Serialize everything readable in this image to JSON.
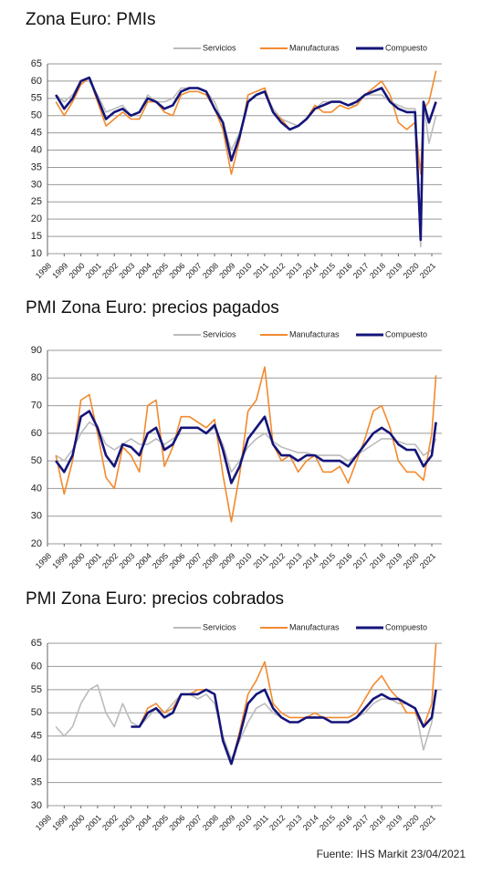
{
  "chart_data": [
    {
      "type": "line",
      "title": "Zona Euro: PMIs",
      "x": [
        1998.5,
        1999,
        1999.5,
        2000,
        2000.5,
        2001,
        2001.5,
        2002,
        2002.5,
        2003,
        2003.5,
        2004,
        2004.5,
        2005,
        2005.5,
        2006,
        2006.5,
        2007,
        2007.5,
        2008,
        2008.5,
        2009,
        2009.5,
        2010,
        2010.5,
        2011,
        2011.5,
        2012,
        2012.5,
        2013,
        2013.5,
        2014,
        2014.5,
        2015,
        2015.5,
        2016,
        2016.5,
        2017,
        2017.5,
        2018,
        2018.5,
        2019,
        2019.5,
        2020,
        2020.33,
        2020.5,
        2020.83,
        2021.25
      ],
      "series": [
        {
          "name": "Servicios",
          "color": "#bbbbbb",
          "values": [
            56,
            54,
            56,
            60,
            60,
            56,
            51,
            52,
            53,
            50,
            51,
            56,
            54,
            54,
            55,
            58,
            58,
            58,
            57,
            54,
            48,
            40,
            45,
            54,
            56,
            57,
            52,
            49,
            48,
            47,
            49,
            52,
            54,
            54,
            54,
            53,
            53,
            56,
            56,
            56,
            54,
            53,
            52,
            52,
            12,
            54,
            42,
            50
          ]
        },
        {
          "name": "Manufacturas",
          "color": "#f28a2e",
          "values": [
            54,
            50,
            54,
            59,
            61,
            54,
            47,
            49,
            51,
            49,
            49,
            54,
            54,
            51,
            50,
            56,
            57,
            57,
            56,
            52,
            46,
            33,
            43,
            56,
            57,
            58,
            51,
            49,
            46,
            47,
            49,
            53,
            51,
            51,
            53,
            52,
            53,
            56,
            58,
            60,
            56,
            48,
            46,
            48,
            33,
            52,
            54,
            63
          ]
        },
        {
          "name": "Compuesto",
          "color": "#14147a",
          "values": [
            56,
            52,
            55,
            60,
            61,
            55,
            49,
            51,
            52,
            50,
            51,
            55,
            54,
            52,
            53,
            57,
            58,
            58,
            57,
            52,
            48,
            37,
            44,
            54,
            56,
            57,
            51,
            48,
            46,
            47,
            49,
            52,
            53,
            54,
            54,
            53,
            54,
            56,
            57,
            58,
            54,
            52,
            51,
            51,
            14,
            54,
            48,
            54
          ]
        }
      ],
      "xlim": [
        1998,
        2021.6
      ],
      "xticks": [
        1998,
        1999,
        2000,
        2001,
        2002,
        2003,
        2004,
        2005,
        2006,
        2007,
        2008,
        2009,
        2010,
        2011,
        2012,
        2013,
        2014,
        2015,
        2016,
        2017,
        2018,
        2019,
        2020,
        2021
      ],
      "ylim": [
        10,
        65
      ],
      "yticks": [
        10,
        15,
        20,
        25,
        30,
        35,
        40,
        45,
        50,
        55,
        60,
        65
      ],
      "grid": true
    },
    {
      "type": "line",
      "title": "PMI Zona Euro: precios pagados",
      "x": [
        1998.5,
        1999,
        1999.5,
        2000,
        2000.5,
        2001,
        2001.5,
        2002,
        2002.5,
        2003,
        2003.5,
        2004,
        2004.5,
        2005,
        2005.5,
        2006,
        2006.5,
        2007,
        2007.5,
        2008,
        2008.5,
        2009,
        2009.5,
        2010,
        2010.5,
        2011,
        2011.5,
        2012,
        2012.5,
        2013,
        2013.5,
        2014,
        2014.5,
        2015,
        2015.5,
        2016,
        2016.5,
        2017,
        2017.5,
        2018,
        2018.5,
        2019,
        2019.5,
        2020,
        2020.5,
        2021,
        2021.25
      ],
      "series": [
        {
          "name": "Servicios",
          "color": "#bbbbbb",
          "values": [
            52,
            50,
            54,
            60,
            64,
            62,
            56,
            54,
            56,
            58,
            56,
            56,
            58,
            56,
            58,
            60,
            60,
            60,
            60,
            62,
            56,
            46,
            50,
            55,
            58,
            60,
            57,
            55,
            54,
            53,
            53,
            52,
            52,
            52,
            52,
            50,
            52,
            54,
            56,
            58,
            58,
            57,
            56,
            56,
            52,
            54,
            58
          ]
        },
        {
          "name": "Manufacturas",
          "color": "#f28a2e",
          "values": [
            52,
            38,
            50,
            72,
            74,
            60,
            44,
            40,
            55,
            52,
            46,
            70,
            72,
            48,
            55,
            66,
            66,
            64,
            62,
            65,
            45,
            28,
            45,
            68,
            72,
            84,
            56,
            50,
            52,
            46,
            50,
            52,
            46,
            46,
            48,
            42,
            50,
            58,
            68,
            70,
            62,
            50,
            46,
            46,
            43,
            60,
            81
          ]
        },
        {
          "name": "Compuesto",
          "color": "#14147a",
          "values": [
            50,
            46,
            52,
            66,
            68,
            62,
            52,
            48,
            56,
            55,
            52,
            60,
            62,
            54,
            56,
            62,
            62,
            62,
            60,
            63,
            54,
            42,
            48,
            58,
            62,
            66,
            56,
            52,
            52,
            50,
            52,
            52,
            50,
            50,
            50,
            48,
            52,
            56,
            60,
            62,
            60,
            56,
            54,
            54,
            48,
            52,
            64
          ]
        }
      ],
      "xlim": [
        1998,
        2021.6
      ],
      "xticks": [
        1998,
        1999,
        2000,
        2001,
        2002,
        2003,
        2004,
        2005,
        2006,
        2007,
        2008,
        2009,
        2010,
        2011,
        2012,
        2013,
        2014,
        2015,
        2016,
        2017,
        2018,
        2019,
        2020,
        2021
      ],
      "ylim": [
        20,
        90
      ],
      "yticks": [
        20,
        30,
        40,
        50,
        60,
        70,
        80,
        90
      ],
      "grid": true
    },
    {
      "type": "line",
      "title": "PMI Zona Euro: precios cobrados",
      "x": [
        1998.5,
        1999,
        1999.5,
        2000,
        2000.5,
        2001,
        2001.5,
        2002,
        2002.5,
        2003,
        2003.5,
        2004,
        2004.5,
        2005,
        2005.5,
        2006,
        2006.5,
        2007,
        2007.5,
        2008,
        2008.5,
        2009,
        2009.5,
        2010,
        2010.5,
        2011,
        2011.5,
        2012,
        2012.5,
        2013,
        2013.5,
        2014,
        2014.5,
        2015,
        2015.5,
        2016,
        2016.5,
        2017,
        2017.5,
        2018,
        2018.5,
        2019,
        2019.5,
        2020,
        2020.5,
        2021,
        2021.25
      ],
      "series": [
        {
          "name": "Servicios",
          "color": "#bbbbbb",
          "values": [
            47,
            45,
            47,
            52,
            55,
            56,
            50,
            47,
            52,
            48,
            47,
            49,
            51,
            50,
            52,
            54,
            54,
            53,
            54,
            52,
            45,
            40,
            44,
            48,
            51,
            52,
            50,
            49,
            48,
            48,
            49,
            49,
            49,
            48,
            48,
            48,
            49,
            50,
            52,
            53,
            53,
            52,
            52,
            51,
            42,
            48,
            55
          ]
        },
        {
          "name": "Manufacturas",
          "color": "#f28a2e",
          "values": [
            null,
            null,
            null,
            null,
            null,
            null,
            null,
            null,
            null,
            47,
            47,
            51,
            52,
            50,
            51,
            54,
            54,
            55,
            55,
            54,
            44,
            39,
            46,
            54,
            57,
            61,
            52,
            50,
            49,
            49,
            49,
            50,
            49,
            49,
            49,
            49,
            50,
            53,
            56,
            58,
            55,
            53,
            50,
            50,
            47,
            52,
            65
          ]
        },
        {
          "name": "Compuesto",
          "color": "#14147a",
          "values": [
            null,
            null,
            null,
            null,
            null,
            null,
            null,
            null,
            null,
            47,
            47,
            50,
            51,
            49,
            50,
            54,
            54,
            54,
            55,
            54,
            44,
            39,
            45,
            52,
            54,
            55,
            51,
            49,
            48,
            48,
            49,
            49,
            49,
            48,
            48,
            48,
            49,
            51,
            53,
            54,
            53,
            53,
            52,
            51,
            47,
            49,
            55
          ]
        }
      ],
      "xlim": [
        1998,
        2021.6
      ],
      "xticks": [
        1998,
        1999,
        2000,
        2001,
        2002,
        2003,
        2004,
        2005,
        2006,
        2007,
        2008,
        2009,
        2010,
        2011,
        2012,
        2013,
        2014,
        2015,
        2016,
        2017,
        2018,
        2019,
        2020,
        2021
      ],
      "ylim": [
        30,
        65
      ],
      "yticks": [
        30,
        35,
        40,
        45,
        50,
        55,
        60,
        65
      ],
      "grid": true
    }
  ],
  "source": "Fuente: IHS Markit 23/04/2021"
}
